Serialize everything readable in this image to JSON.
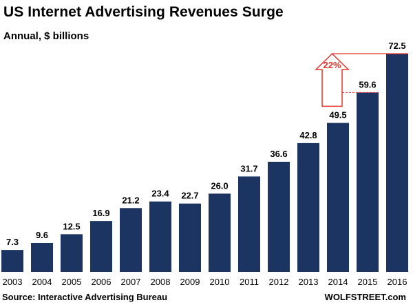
{
  "header": {
    "title": "US Internet Advertising Revenues Surge",
    "subtitle": "Annual, $ billions"
  },
  "footer": {
    "source": "Source: Interactive Advertising Bureau",
    "brand": "WOLFSTREET.com"
  },
  "colors": {
    "bar": "#1b3461",
    "annotation": "#e8322b"
  },
  "chart_data": {
    "type": "bar",
    "title": "US Internet Advertising Revenues Surge",
    "subtitle": "Annual, $ billions",
    "xlabel": "",
    "ylabel": "",
    "categories": [
      "2003",
      "2004",
      "2005",
      "2006",
      "2007",
      "2008",
      "2009",
      "2010",
      "2011",
      "2012",
      "2013",
      "2014",
      "2015",
      "2016"
    ],
    "values": [
      7.3,
      9.6,
      12.5,
      16.9,
      21.2,
      23.4,
      22.7,
      26.0,
      31.7,
      36.6,
      42.8,
      49.5,
      59.6,
      72.5
    ],
    "value_labels": [
      "7.3",
      "9.6",
      "12.5",
      "16.9",
      "21.2",
      "23.4",
      "22.7",
      "26.0",
      "31.7",
      "36.6",
      "42.8",
      "49.5",
      "59.6",
      "72.5"
    ],
    "ylim": [
      0,
      72.5
    ],
    "grid": false,
    "legend": "none",
    "annotation": {
      "text": "22%",
      "from_category": "2015",
      "to_category": "2016",
      "shape": "up-arrow"
    }
  }
}
